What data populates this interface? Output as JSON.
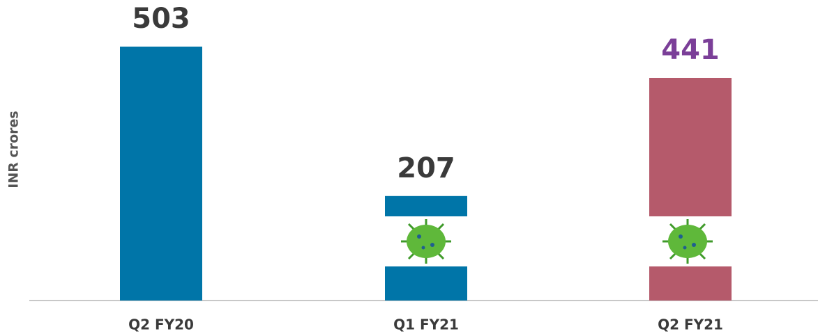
{
  "chart_data": {
    "type": "bar",
    "y_label": "INR crores",
    "categories": [
      "Q2 FY20",
      "Q1 FY21",
      "Q2 FY21"
    ],
    "values": [
      503,
      207,
      441
    ],
    "colors": [
      "#0075a8",
      "#0075a8",
      "#b55a6b"
    ],
    "value_label_colors": [
      "#3a3a3a",
      "#3a3a3a",
      "#7b3f98"
    ]
  }
}
